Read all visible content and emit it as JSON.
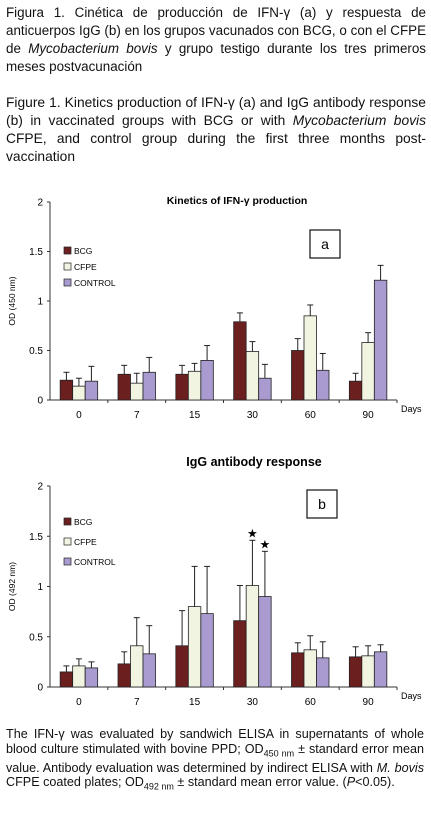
{
  "caption_es": {
    "part1": "Figura 1. Cinética de producción de IFN-",
    "gamma": "γ",
    "part2": " (a) y respuesta de anticuerpos IgG (b) en los grupos vacunados con BCG, o con el CFPE de ",
    "italic": "Mycobacterium bovis",
    "part3": " y grupo testigo durante los tres primeros meses postvacunación"
  },
  "caption_en": {
    "part1": "Figure 1. Kinetics production of IFN-",
    "gamma": "γ",
    "part2": " (a) and IgG antibody response (b) in vaccinated groups with BCG or with ",
    "italic": "Mycobacterium bovis",
    "part3": " CFPE, and control group during the first three months post-vaccination"
  },
  "colors": {
    "bcg": "#6b1f1f",
    "cfpe": "#f2f4e2",
    "control": "#a99bd0"
  },
  "chart_data": [
    {
      "type": "bar",
      "panel": "a",
      "title": "Kinetics of IFN-γ production",
      "ylabel": "OD (450 nm)",
      "xlabel": "Days",
      "ylim": [
        0,
        2
      ],
      "yticks": [
        "0",
        "0.5",
        "1",
        "1.5",
        "2"
      ],
      "categories": [
        "0",
        "7",
        "15",
        "30",
        "60",
        "90"
      ],
      "legend_position": "top-left",
      "series": [
        {
          "name": "BCG",
          "values": [
            0.2,
            0.26,
            0.26,
            0.79,
            0.5,
            0.19
          ],
          "errors": [
            0.08,
            0.09,
            0.09,
            0.09,
            0.12,
            0.08
          ]
        },
        {
          "name": "CFPE",
          "values": [
            0.14,
            0.17,
            0.29,
            0.49,
            0.85,
            0.58
          ],
          "errors": [
            0.08,
            0.1,
            0.08,
            0.1,
            0.11,
            0.1
          ]
        },
        {
          "name": "CONTROL",
          "values": [
            0.19,
            0.28,
            0.4,
            0.22,
            0.3,
            1.21
          ],
          "errors": [
            0.15,
            0.15,
            0.15,
            0.14,
            0.17,
            0.15
          ]
        }
      ]
    },
    {
      "type": "bar",
      "panel": "b",
      "title": "IgG antibody response",
      "ylabel": "OD (492 nm)",
      "xlabel": "Days",
      "ylim": [
        0,
        2
      ],
      "yticks": [
        "0",
        "0.5",
        "1",
        "1.5",
        "2"
      ],
      "categories": [
        "0",
        "7",
        "15",
        "30",
        "60",
        "90"
      ],
      "legend_position": "top-left",
      "significance_marker": "★",
      "significant": [
        {
          "series": "CFPE",
          "category": "30"
        },
        {
          "series": "CONTROL",
          "category": "30"
        }
      ],
      "series": [
        {
          "name": "BCG",
          "values": [
            0.15,
            0.23,
            0.41,
            0.66,
            0.34,
            0.3
          ],
          "errors": [
            0.06,
            0.12,
            0.35,
            0.35,
            0.1,
            0.1
          ]
        },
        {
          "name": "CFPE",
          "values": [
            0.21,
            0.41,
            0.8,
            1.01,
            0.37,
            0.31
          ],
          "errors": [
            0.07,
            0.28,
            0.4,
            0.45,
            0.14,
            0.1
          ]
        },
        {
          "name": "CONTROL",
          "values": [
            0.19,
            0.33,
            0.73,
            0.9,
            0.29,
            0.35
          ],
          "errors": [
            0.06,
            0.28,
            0.47,
            0.45,
            0.16,
            0.07
          ]
        }
      ]
    }
  ],
  "footnote": {
    "t1": "The IFN-γ was evaluated by sandwich  ELISA in supernatants of whole blood culture stimulated with bovine PPD; OD",
    "s1": "450 nm",
    "t2": " ± standard error mean value. Antibody evaluation was determined by indirect ELISA with ",
    "i1": "M. bovis",
    "t3": " CFPE coated plates; OD",
    "s2": "492 nm",
    "t4": " ± standard mean error value. (",
    "i2": "P",
    "t5": "<0.05)."
  }
}
